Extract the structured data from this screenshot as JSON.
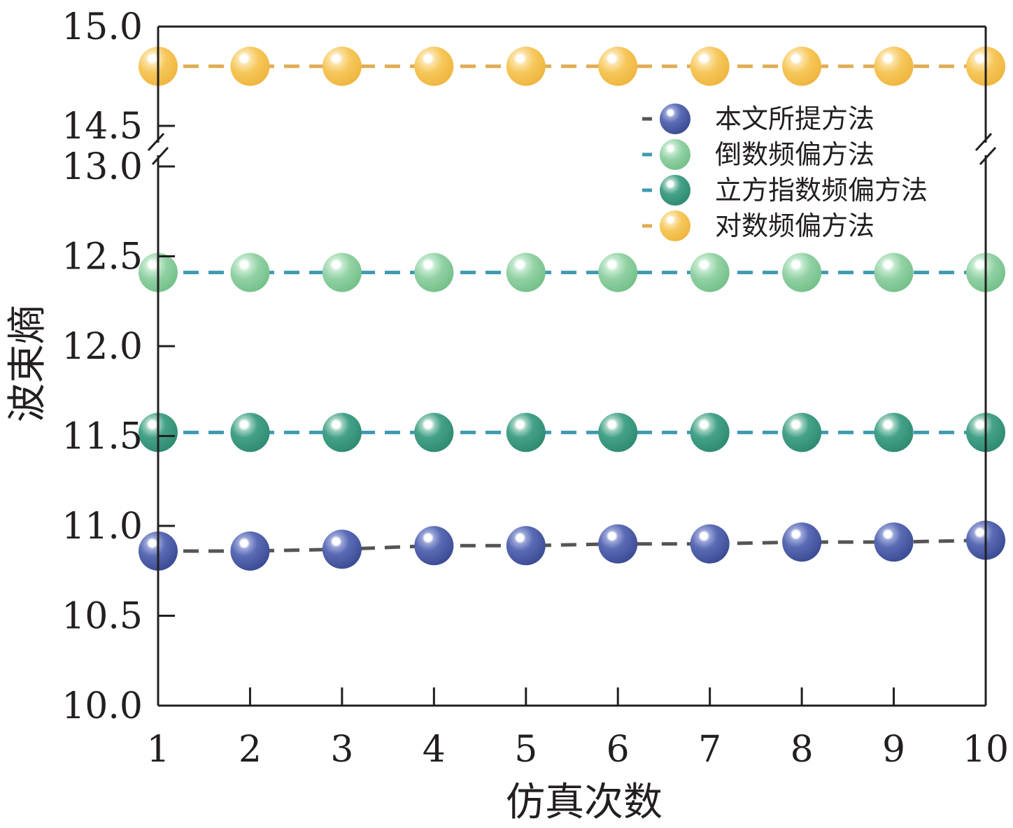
{
  "chart_data": {
    "type": "line",
    "xlabel": "仿真次数",
    "ylabel": "波束熵",
    "x": [
      1,
      2,
      3,
      4,
      5,
      6,
      7,
      8,
      9,
      10
    ],
    "x_tick_labels": [
      "1",
      "2",
      "3",
      "4",
      "5",
      "6",
      "7",
      "8",
      "9",
      "10"
    ],
    "xlim": [
      1,
      10
    ],
    "y_axis": {
      "broken": true,
      "lower_segment": {
        "range": [
          10.0,
          13.0
        ],
        "tick_values": [
          10.0,
          10.5,
          11.0,
          11.5,
          12.0,
          12.5,
          13.0
        ],
        "tick_labels": [
          "10.0",
          "10.5",
          "11.0",
          "11.5",
          "12.0",
          "12.5",
          "13.0"
        ]
      },
      "upper_segment": {
        "range": [
          14.5,
          15.0
        ],
        "tick_values": [
          14.5,
          15.0
        ],
        "tick_labels": [
          "14.5",
          "15.0"
        ]
      }
    },
    "grid": false,
    "legend_position": "upper-right",
    "series": [
      {
        "name": "本文所提方法",
        "color": "#4a5aa0",
        "line_color": "#555555",
        "values": [
          10.86,
          10.86,
          10.87,
          10.89,
          10.89,
          10.9,
          10.9,
          10.91,
          10.91,
          10.92
        ]
      },
      {
        "name": "倒数频偏方法",
        "color": "#88cc9c",
        "line_color": "#3f9ab0",
        "values": [
          12.41,
          12.41,
          12.41,
          12.41,
          12.41,
          12.41,
          12.41,
          12.41,
          12.41,
          12.41
        ]
      },
      {
        "name": "立方指数频偏方法",
        "color": "#3a9a80",
        "line_color": "#3f9ab0",
        "values": [
          11.52,
          11.52,
          11.52,
          11.52,
          11.52,
          11.52,
          11.52,
          11.52,
          11.52,
          11.52
        ]
      },
      {
        "name": "对数频偏方法",
        "color": "#f5c452",
        "line_color": "#e0ac52",
        "values": [
          14.8,
          14.8,
          14.8,
          14.8,
          14.8,
          14.8,
          14.8,
          14.8,
          14.8,
          14.8
        ]
      }
    ]
  }
}
